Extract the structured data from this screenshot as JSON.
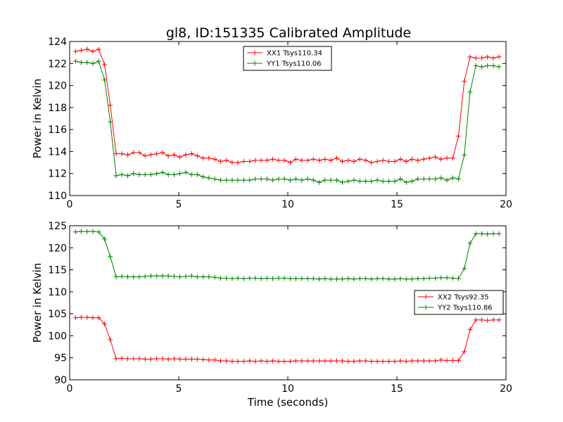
{
  "title": "gl8, ID:151335 Calibrated Amplitude",
  "colors": {
    "red": "#ff0000",
    "green": "#008000"
  },
  "chart_data": [
    {
      "type": "line",
      "title": "gl8, ID:151335 Calibrated Amplitude",
      "xlabel": "",
      "ylabel": "Power in Kelvin",
      "xlim": [
        0,
        20
      ],
      "ylim": [
        110,
        124
      ],
      "xticks": [
        0,
        5,
        10,
        15,
        20
      ],
      "yticks": [
        110,
        112,
        114,
        116,
        118,
        120,
        122,
        124
      ],
      "legend_position": "top-center",
      "x": [
        0.27,
        0.53,
        0.8,
        1.06,
        1.33,
        1.6,
        1.86,
        2.13,
        2.39,
        2.66,
        2.93,
        3.19,
        3.46,
        3.72,
        3.99,
        4.26,
        4.52,
        4.79,
        5.05,
        5.32,
        5.59,
        5.85,
        6.12,
        6.38,
        6.65,
        6.92,
        7.18,
        7.45,
        7.71,
        7.98,
        8.25,
        8.51,
        8.78,
        9.04,
        9.31,
        9.58,
        9.84,
        10.11,
        10.37,
        10.64,
        10.91,
        11.17,
        11.44,
        11.7,
        11.97,
        12.24,
        12.5,
        12.77,
        13.03,
        13.3,
        13.57,
        13.83,
        14.1,
        14.36,
        14.63,
        14.9,
        15.16,
        15.43,
        15.69,
        15.96,
        16.23,
        16.49,
        16.76,
        17.02,
        17.29,
        17.56,
        17.82,
        18.09,
        18.35,
        18.62,
        18.89,
        19.15,
        19.42,
        19.68
      ],
      "series": [
        {
          "name": "XX1 Tsys110.34",
          "color": "#ff0000",
          "values": [
            123.1,
            123.2,
            123.3,
            123.1,
            123.3,
            121.9,
            118.2,
            113.8,
            113.8,
            113.7,
            113.9,
            113.9,
            113.6,
            113.7,
            113.8,
            113.9,
            113.6,
            113.7,
            113.5,
            113.7,
            113.8,
            113.6,
            113.4,
            113.4,
            113.3,
            113.1,
            113.2,
            113.0,
            113.0,
            113.1,
            113.1,
            113.2,
            113.2,
            113.2,
            113.3,
            113.2,
            113.2,
            113.0,
            113.3,
            113.2,
            113.2,
            113.3,
            113.2,
            113.3,
            113.2,
            113.4,
            113.1,
            113.2,
            113.1,
            113.3,
            113.2,
            113.0,
            113.1,
            113.2,
            113.1,
            113.1,
            113.3,
            113.1,
            113.3,
            113.2,
            113.3,
            113.4,
            113.5,
            113.3,
            113.4,
            113.4,
            115.4,
            120.4,
            122.6,
            122.5,
            122.5,
            122.6,
            122.5,
            122.6
          ]
        },
        {
          "name": "YY1 Tsys110.06",
          "color": "#008000",
          "values": [
            122.2,
            122.1,
            122.1,
            122.0,
            122.2,
            120.5,
            116.7,
            111.8,
            111.9,
            111.8,
            112.0,
            111.9,
            111.9,
            111.9,
            112.0,
            112.1,
            111.9,
            111.9,
            112.0,
            112.1,
            111.9,
            111.9,
            111.7,
            111.6,
            111.5,
            111.4,
            111.4,
            111.4,
            111.4,
            111.4,
            111.4,
            111.5,
            111.5,
            111.5,
            111.4,
            111.5,
            111.5,
            111.4,
            111.5,
            111.4,
            111.5,
            111.4,
            111.2,
            111.4,
            111.4,
            111.4,
            111.2,
            111.3,
            111.4,
            111.3,
            111.3,
            111.3,
            111.4,
            111.3,
            111.3,
            111.3,
            111.5,
            111.2,
            111.3,
            111.5,
            111.5,
            111.5,
            111.5,
            111.6,
            111.4,
            111.6,
            111.5,
            113.7,
            119.4,
            121.8,
            121.7,
            121.8,
            121.8,
            121.7
          ]
        }
      ]
    },
    {
      "type": "line",
      "title": "",
      "xlabel": "Time (seconds)",
      "ylabel": "Power in Kelvin",
      "xlim": [
        0,
        20
      ],
      "ylim": [
        90,
        125
      ],
      "xticks": [
        0,
        5,
        10,
        15,
        20
      ],
      "yticks": [
        90,
        95,
        100,
        105,
        110,
        115,
        120,
        125
      ],
      "legend_position": "center-right",
      "x": [
        0.27,
        0.53,
        0.8,
        1.06,
        1.33,
        1.6,
        1.86,
        2.13,
        2.39,
        2.66,
        2.93,
        3.19,
        3.46,
        3.72,
        3.99,
        4.26,
        4.52,
        4.79,
        5.05,
        5.32,
        5.59,
        5.85,
        6.12,
        6.38,
        6.65,
        6.92,
        7.18,
        7.45,
        7.71,
        7.98,
        8.25,
        8.51,
        8.78,
        9.04,
        9.31,
        9.58,
        9.84,
        10.11,
        10.37,
        10.64,
        10.91,
        11.17,
        11.44,
        11.7,
        11.97,
        12.24,
        12.5,
        12.77,
        13.03,
        13.3,
        13.57,
        13.83,
        14.1,
        14.36,
        14.63,
        14.9,
        15.16,
        15.43,
        15.69,
        15.96,
        16.23,
        16.49,
        16.76,
        17.02,
        17.29,
        17.56,
        17.82,
        18.09,
        18.35,
        18.62,
        18.89,
        19.15,
        19.42,
        19.68
      ],
      "series": [
        {
          "name": "XX2 Tsys92.35",
          "color": "#ff0000",
          "values": [
            104.1,
            104.2,
            104.2,
            104.1,
            104.1,
            102.7,
            99.1,
            94.8,
            94.9,
            94.8,
            94.8,
            94.8,
            94.7,
            94.7,
            94.8,
            94.8,
            94.7,
            94.8,
            94.7,
            94.7,
            94.7,
            94.7,
            94.6,
            94.5,
            94.5,
            94.3,
            94.3,
            94.2,
            94.2,
            94.2,
            94.3,
            94.2,
            94.3,
            94.2,
            94.3,
            94.2,
            94.2,
            94.2,
            94.3,
            94.3,
            94.3,
            94.3,
            94.3,
            94.3,
            94.3,
            94.3,
            94.3,
            94.2,
            94.2,
            94.3,
            94.3,
            94.2,
            94.2,
            94.2,
            94.2,
            94.2,
            94.3,
            94.2,
            94.3,
            94.3,
            94.3,
            94.3,
            94.3,
            94.5,
            94.4,
            94.4,
            94.4,
            96.4,
            101.4,
            103.6,
            103.6,
            103.5,
            103.6,
            103.6
          ]
        },
        {
          "name": "YY2 Tsys110.86",
          "color": "#008000",
          "values": [
            123.6,
            123.7,
            123.7,
            123.7,
            123.6,
            122.0,
            118.0,
            113.4,
            113.5,
            113.4,
            113.4,
            113.4,
            113.5,
            113.6,
            113.6,
            113.6,
            113.6,
            113.5,
            113.4,
            113.5,
            113.6,
            113.4,
            113.4,
            113.4,
            113.3,
            113.1,
            113.1,
            113.0,
            113.1,
            113.0,
            113.1,
            113.1,
            113.0,
            113.1,
            113.0,
            113.1,
            113.1,
            113.0,
            113.0,
            113.0,
            113.0,
            113.0,
            112.9,
            113.0,
            112.9,
            112.9,
            112.9,
            113.0,
            112.9,
            113.0,
            113.0,
            112.9,
            113.0,
            113.0,
            112.9,
            112.9,
            113.0,
            112.9,
            112.9,
            113.0,
            113.0,
            113.1,
            113.1,
            113.2,
            113.2,
            113.1,
            113.0,
            115.3,
            121.0,
            123.2,
            123.2,
            123.1,
            123.2,
            123.2
          ]
        }
      ]
    }
  ]
}
